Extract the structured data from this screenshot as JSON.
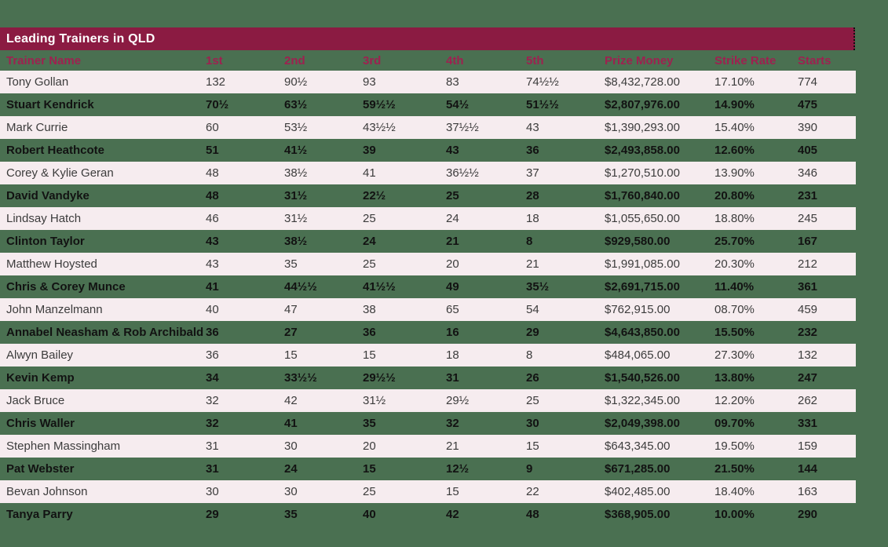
{
  "panel": {
    "title": "Leading Trainers in QLD"
  },
  "colors": {
    "background_green": "#4A7051",
    "title_bar_maroon": "#8B1B42",
    "title_text_white": "#FFFFFF",
    "header_text_maroon": "#9E2150",
    "row_pink": "#F6ECEF",
    "row_text_regular": "#3C3C3C",
    "row_text_bold": "#121212"
  },
  "chart_data": {
    "type": "table",
    "title": "Leading Trainers in QLD",
    "columns": [
      "Trainer Name",
      "1st",
      "2nd",
      "3rd",
      "4th",
      "5th",
      "Prize Money",
      "Strike Rate",
      "Starts"
    ],
    "rows": [
      [
        "Tony Gollan",
        "132",
        "90½",
        "93",
        "83",
        "74½½",
        "$8,432,728.00",
        "17.10%",
        "774"
      ],
      [
        "Stuart Kendrick",
        "70½",
        "63½",
        "59½½",
        "54½",
        "51½½",
        "$2,807,976.00",
        "14.90%",
        "475"
      ],
      [
        "Mark Currie",
        "60",
        "53½",
        "43½½",
        "37½½",
        "43",
        "$1,390,293.00",
        "15.40%",
        "390"
      ],
      [
        "Robert Heathcote",
        "51",
        "41½",
        "39",
        "43",
        "36",
        "$2,493,858.00",
        "12.60%",
        "405"
      ],
      [
        "Corey & Kylie Geran",
        "48",
        "38½",
        "41",
        "36½½",
        "37",
        "$1,270,510.00",
        "13.90%",
        "346"
      ],
      [
        "David Vandyke",
        "48",
        "31½",
        "22½",
        "25",
        "28",
        "$1,760,840.00",
        "20.80%",
        "231"
      ],
      [
        "Lindsay Hatch",
        "46",
        "31½",
        "25",
        "24",
        "18",
        "$1,055,650.00",
        "18.80%",
        "245"
      ],
      [
        "Clinton Taylor",
        "43",
        "38½",
        "24",
        "21",
        "8",
        "$929,580.00",
        "25.70%",
        "167"
      ],
      [
        "Matthew Hoysted",
        "43",
        "35",
        "25",
        "20",
        "21",
        "$1,991,085.00",
        "20.30%",
        "212"
      ],
      [
        "Chris & Corey Munce",
        "41",
        "44½½",
        "41½½",
        "49",
        "35½",
        "$2,691,715.00",
        "11.40%",
        "361"
      ],
      [
        "John Manzelmann",
        "40",
        "47",
        "38",
        "65",
        "54",
        "$762,915.00",
        "08.70%",
        "459"
      ],
      [
        "Annabel Neasham & Rob Archibald",
        "36",
        "27",
        "36",
        "16",
        "29",
        "$4,643,850.00",
        "15.50%",
        "232"
      ],
      [
        "Alwyn Bailey",
        "36",
        "15",
        "15",
        "18",
        "8",
        "$484,065.00",
        "27.30%",
        "132"
      ],
      [
        "Kevin Kemp",
        "34",
        "33½½",
        "29½½",
        "31",
        "26",
        "$1,540,526.00",
        "13.80%",
        "247"
      ],
      [
        "Jack Bruce",
        "32",
        "42",
        "31½",
        "29½",
        "25",
        "$1,322,345.00",
        "12.20%",
        "262"
      ],
      [
        "Chris Waller",
        "32",
        "41",
        "35",
        "32",
        "30",
        "$2,049,398.00",
        "09.70%",
        "331"
      ],
      [
        "Stephen Massingham",
        "31",
        "30",
        "20",
        "21",
        "15",
        "$643,345.00",
        "19.50%",
        "159"
      ],
      [
        "Pat Webster",
        "31",
        "24",
        "15",
        "12½",
        "9",
        "$671,285.00",
        "21.50%",
        "144"
      ],
      [
        "Bevan Johnson",
        "30",
        "30",
        "25",
        "15",
        "22",
        "$402,485.00",
        "18.40%",
        "163"
      ],
      [
        "Tanya Parry",
        "29",
        "35",
        "40",
        "42",
        "48",
        "$368,905.00",
        "10.00%",
        "290"
      ]
    ]
  }
}
